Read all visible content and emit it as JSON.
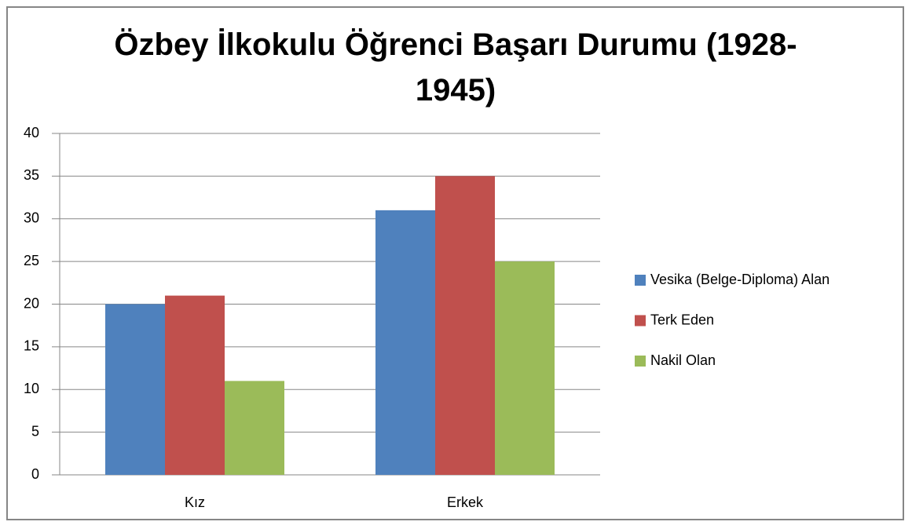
{
  "chart_data": {
    "type": "bar",
    "title": "Özbey İlkokulu Öğrenci Başarı Durumu (1928-1945)",
    "categories": [
      "Kız",
      "Erkek"
    ],
    "series": [
      {
        "name": "Vesika (Belge-Diploma) Alan",
        "color": "#4f81bd",
        "values": [
          20,
          31
        ]
      },
      {
        "name": "Terk Eden",
        "color": "#c0504d",
        "values": [
          21,
          35
        ]
      },
      {
        "name": "Nakil Olan",
        "color": "#9bbb59",
        "values": [
          11,
          25
        ]
      }
    ],
    "ylim": [
      0,
      40
    ],
    "yticks": [
      0,
      5,
      10,
      15,
      20,
      25,
      30,
      35,
      40
    ],
    "grid": true,
    "legend": "right"
  }
}
